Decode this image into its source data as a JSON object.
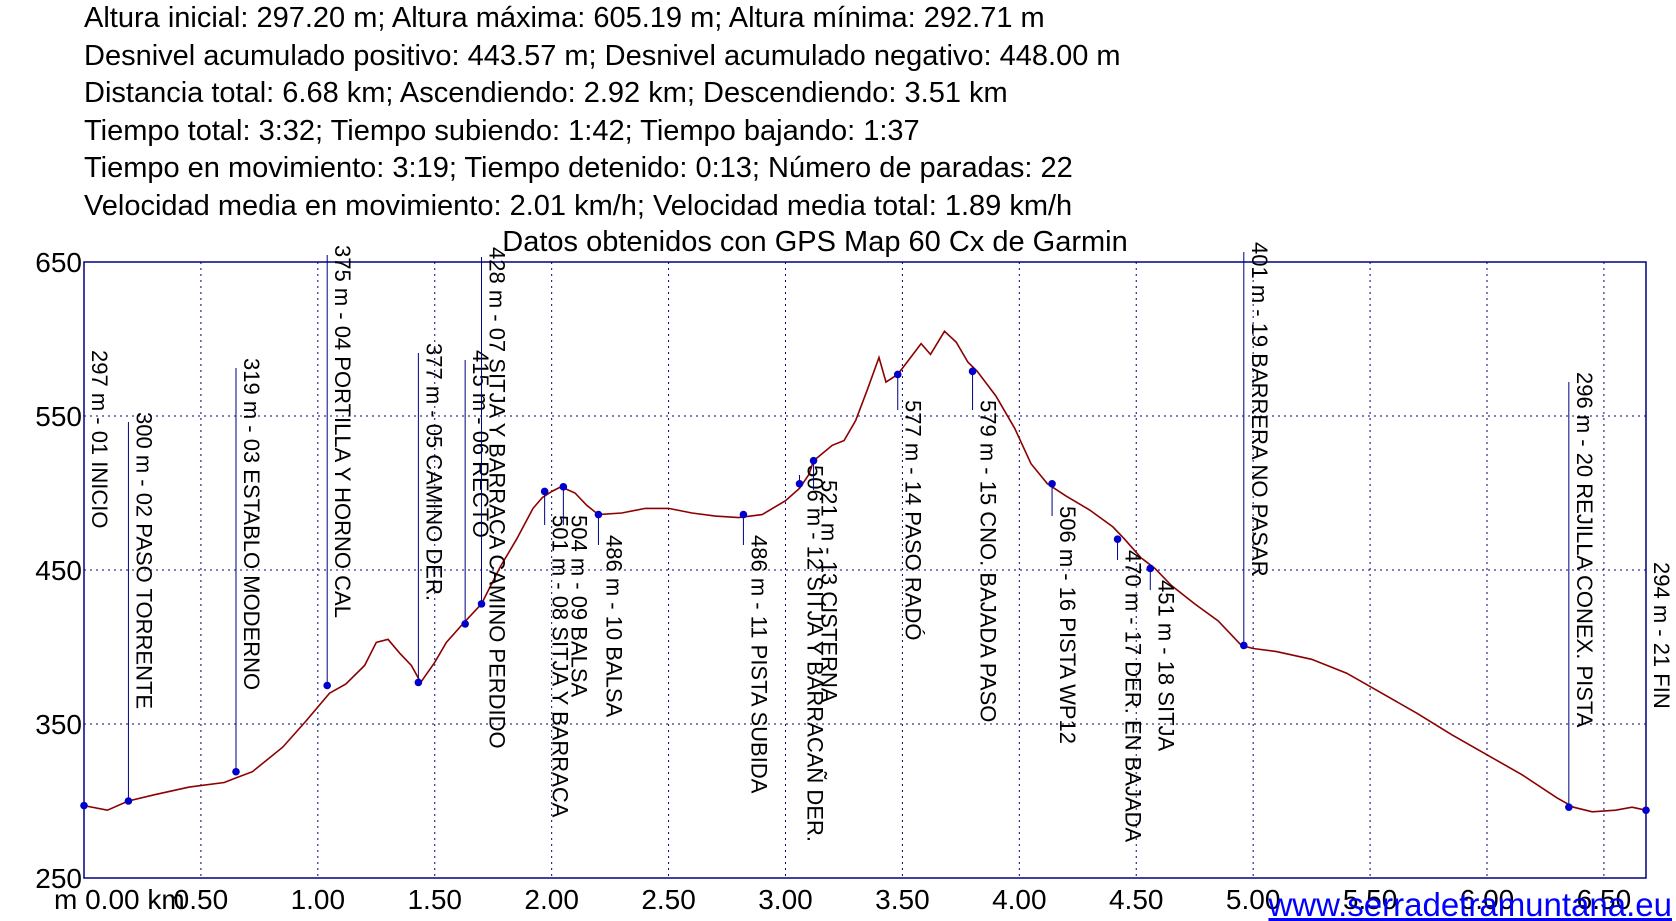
{
  "header_lines": [
    "Altura inicial: 297.20 m; Altura máxima: 605.19 m; Altura mínima: 292.71 m",
    "Desnivel acumulado positivo: 443.57 m; Desnivel acumulado negativo: 448.00 m",
    "Distancia total: 6.68 km; Ascendiendo: 2.92 km; Descendiendo: 3.51 km",
    "Tiempo total: 3:32; Tiempo subiendo: 1:42; Tiempo bajando: 1:37",
    "Tiempo en movimiento: 3:19; Tiempo detenido: 0:13; Número de paradas: 22",
    "Velocidad media en movimiento: 2.01 km/h; Velocidad media total: 1.89 km/h",
    "Datos obtenidos con GPS Map 60 Cx de Garmin"
  ],
  "watermark": "www.serradetramuntana.eu",
  "colors": {
    "profile": "#8b0000",
    "axes": "#000080",
    "grid": "#000080",
    "markers": "#0000cc",
    "watermark": "#0000ff"
  },
  "chart_data": {
    "type": "line",
    "x_unit": "km",
    "y_unit": "m",
    "xlim": [
      0,
      6.68
    ],
    "ylim": [
      250,
      650
    ],
    "x_ticks": [
      "m 0.00 km",
      "0.50",
      "1.00",
      "1.50",
      "2.00",
      "2.50",
      "3.00",
      "3.50",
      "4.00",
      "4.50",
      "5.00",
      "5.50",
      "6.00",
      "6.50"
    ],
    "x_tick_values": [
      0.0,
      0.5,
      1.0,
      1.5,
      2.0,
      2.5,
      3.0,
      3.5,
      4.0,
      4.5,
      5.0,
      5.5,
      6.0,
      6.5
    ],
    "y_ticks": [
      "250",
      "350",
      "450",
      "550",
      "650"
    ],
    "y_tick_values": [
      250,
      350,
      450,
      550,
      650
    ],
    "grid": true,
    "profile": [
      [
        0.0,
        297
      ],
      [
        0.1,
        294
      ],
      [
        0.19,
        300
      ],
      [
        0.3,
        304
      ],
      [
        0.45,
        309
      ],
      [
        0.6,
        312
      ],
      [
        0.65,
        315
      ],
      [
        0.72,
        319
      ],
      [
        0.85,
        335
      ],
      [
        0.95,
        352
      ],
      [
        1.05,
        370
      ],
      [
        1.12,
        376
      ],
      [
        1.2,
        388
      ],
      [
        1.25,
        403
      ],
      [
        1.3,
        405
      ],
      [
        1.35,
        396
      ],
      [
        1.4,
        388
      ],
      [
        1.44,
        377
      ],
      [
        1.5,
        390
      ],
      [
        1.55,
        403
      ],
      [
        1.62,
        415
      ],
      [
        1.7,
        428
      ],
      [
        1.78,
        452
      ],
      [
        1.85,
        470
      ],
      [
        1.92,
        490
      ],
      [
        1.96,
        497
      ],
      [
        2.0,
        501
      ],
      [
        2.04,
        504
      ],
      [
        2.1,
        500
      ],
      [
        2.15,
        492
      ],
      [
        2.2,
        486
      ],
      [
        2.3,
        487
      ],
      [
        2.4,
        490
      ],
      [
        2.5,
        490
      ],
      [
        2.6,
        487
      ],
      [
        2.7,
        485
      ],
      [
        2.8,
        484
      ],
      [
        2.9,
        486
      ],
      [
        3.0,
        495
      ],
      [
        3.06,
        503
      ],
      [
        3.1,
        512
      ],
      [
        3.12,
        521
      ],
      [
        3.2,
        531
      ],
      [
        3.25,
        534
      ],
      [
        3.3,
        547
      ],
      [
        3.35,
        567
      ],
      [
        3.4,
        588
      ],
      [
        3.43,
        572
      ],
      [
        3.48,
        577
      ],
      [
        3.52,
        585
      ],
      [
        3.58,
        597
      ],
      [
        3.62,
        590
      ],
      [
        3.68,
        605
      ],
      [
        3.73,
        598
      ],
      [
        3.78,
        585
      ],
      [
        3.82,
        579
      ],
      [
        3.9,
        563
      ],
      [
        3.98,
        542
      ],
      [
        4.05,
        519
      ],
      [
        4.12,
        506
      ],
      [
        4.2,
        498
      ],
      [
        4.3,
        489
      ],
      [
        4.4,
        478
      ],
      [
        4.45,
        470
      ],
      [
        4.52,
        458
      ],
      [
        4.58,
        451
      ],
      [
        4.65,
        440
      ],
      [
        4.75,
        428
      ],
      [
        4.85,
        417
      ],
      [
        4.95,
        401
      ],
      [
        5.0,
        399
      ],
      [
        5.1,
        397
      ],
      [
        5.25,
        392
      ],
      [
        5.4,
        383
      ],
      [
        5.55,
        370
      ],
      [
        5.7,
        357
      ],
      [
        5.85,
        343
      ],
      [
        6.0,
        330
      ],
      [
        6.15,
        317
      ],
      [
        6.3,
        302
      ],
      [
        6.37,
        296
      ],
      [
        6.45,
        293
      ],
      [
        6.55,
        294
      ],
      [
        6.62,
        296
      ],
      [
        6.68,
        294
      ]
    ],
    "waypoints": [
      {
        "x": 0.0,
        "y": 297,
        "label": "297 m - 01 INICIO",
        "top": 350
      },
      {
        "x": 0.19,
        "y": 300,
        "label": "300 m - 02 PASO TORRENTE",
        "top": 412
      },
      {
        "x": 0.65,
        "y": 319,
        "label": "319 m - 03 ESTABLO MODERNO",
        "top": 358
      },
      {
        "x": 1.04,
        "y": 375,
        "label": "375 m - 04 PORTILLA Y HORNO CAL",
        "top": 245
      },
      {
        "x": 1.43,
        "y": 377,
        "label": "377 m - 05 CAMINO DER.",
        "top": 343
      },
      {
        "x": 1.63,
        "y": 415,
        "label": "415 m - 06 RECTO",
        "top": 350
      },
      {
        "x": 1.7,
        "y": 428,
        "label": "428 m - 07 SITJA Y BARRACA CAMINO PERDIDO",
        "top": 247
      },
      {
        "x": 1.97,
        "y": 501,
        "label": "501 m - 08 SITJA Y BARRACA",
        "bottom": 525
      },
      {
        "x": 2.05,
        "y": 504,
        "label": "504 m - 09 BALSA",
        "bottom": 525
      },
      {
        "x": 2.2,
        "y": 486,
        "label": "486 m - 10 BALSA",
        "bottom": 545
      },
      {
        "x": 2.82,
        "y": 486,
        "label": "486 m - 11 PISTA SUBIDA",
        "bottom": 545
      },
      {
        "x": 3.06,
        "y": 506,
        "label": "506 m - 12 SITJA Y BARRACAÑ DER.",
        "bottom": 475
      },
      {
        "x": 3.12,
        "y": 521,
        "label": "521 m - 13 CISTERNA",
        "bottom": 490
      },
      {
        "x": 3.48,
        "y": 577,
        "label": "577 m - 14 PASO RADÓ",
        "bottom": 410
      },
      {
        "x": 3.8,
        "y": 579,
        "label": "579 m - 15 CNO. BAJADA PASO",
        "bottom": 410
      },
      {
        "x": 4.14,
        "y": 506,
        "label": "506 m - 16 PISTA WP12",
        "bottom": 516
      },
      {
        "x": 4.42,
        "y": 470,
        "label": "470 m - 17 DER. EN BAJADA",
        "bottom": 560
      },
      {
        "x": 4.56,
        "y": 451,
        "label": "451 m - 18 SITJA",
        "bottom": 590
      },
      {
        "x": 4.96,
        "y": 401,
        "label": "401 m - 19 BARRERA NO PASAR",
        "top": 242
      },
      {
        "x": 6.35,
        "y": 296,
        "label": "296 m - 20 REJILLA CONEX. PISTA",
        "top": 372
      },
      {
        "x": 6.68,
        "y": 294,
        "label": "294 m - 21 FIN",
        "top": 562
      }
    ]
  }
}
